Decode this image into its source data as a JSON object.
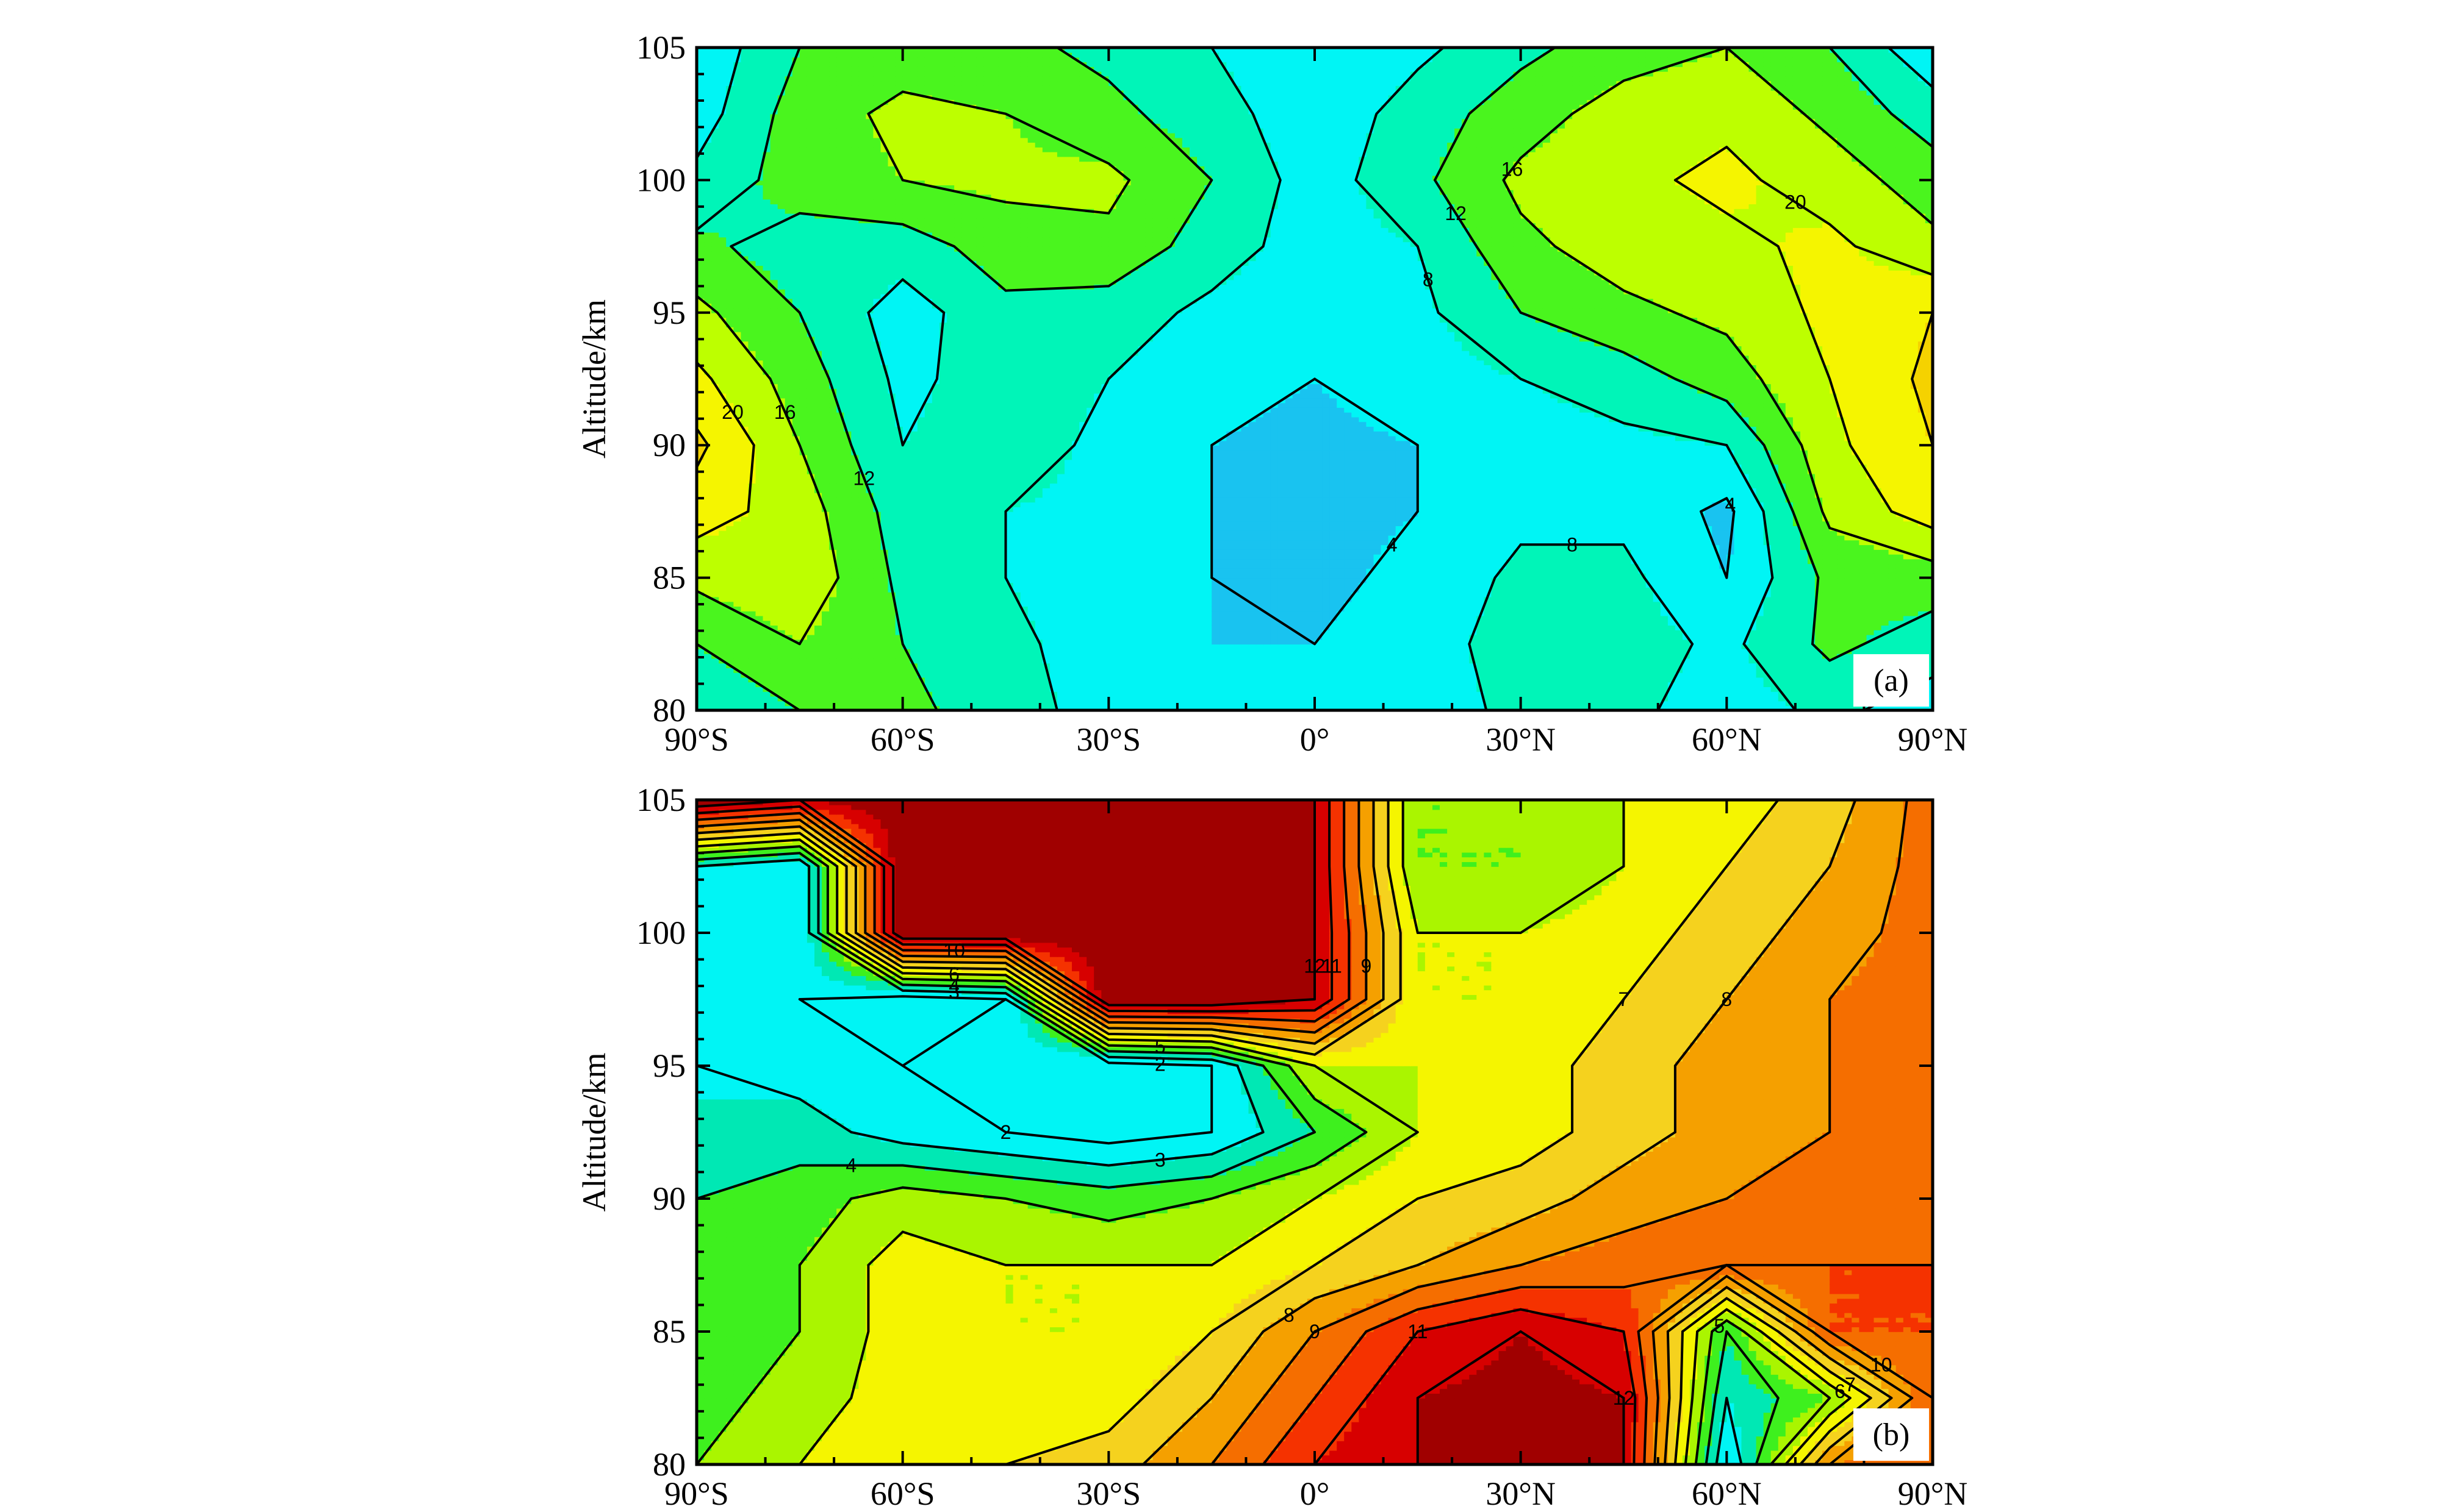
{
  "chart_data": [
    {
      "type": "heatmap",
      "panel_label": "(a)",
      "ylabel": "Altitude/km",
      "x_ticks": [
        "90°S",
        "60°S",
        "30°S",
        "0°",
        "30°N",
        "60°N",
        "90°N"
      ],
      "y_ticks": [
        "80",
        "85",
        "90",
        "95",
        "100",
        "105"
      ],
      "xlim": [
        -90,
        90
      ],
      "ylim": [
        80,
        105
      ],
      "x_unit": "degrees latitude",
      "y_unit": "km",
      "contour_levels": [
        4,
        8,
        12,
        16,
        20,
        24
      ],
      "colormap": [
        "#19c3f0",
        "#00f5f5",
        "#00f5b8",
        "#4af51e",
        "#bdff00",
        "#f5f500",
        "#f5d200"
      ],
      "x": [
        -90,
        -75,
        -60,
        -45,
        -30,
        -15,
        0,
        15,
        30,
        45,
        60,
        75,
        90
      ],
      "y": [
        80,
        82.5,
        85,
        87.5,
        90,
        92.5,
        95,
        97.5,
        100,
        102.5,
        105
      ],
      "z": [
        [
          8,
          12,
          13,
          10,
          6,
          4,
          5,
          6,
          9,
          9,
          6,
          9,
          6
        ],
        [
          12,
          16,
          12,
          9,
          6,
          4,
          4,
          6,
          10,
          10,
          7,
          13,
          10
        ],
        [
          17,
          19,
          11,
          8,
          6,
          4,
          3,
          5,
          9,
          9,
          4,
          13,
          14
        ],
        [
          22,
          18,
          10,
          8,
          7,
          4,
          3,
          4,
          7,
          7,
          3,
          17,
          22
        ],
        [
          25,
          16,
          8,
          10,
          7,
          4,
          3,
          4,
          6,
          7,
          8,
          19,
          24
        ],
        [
          21,
          14,
          7,
          10,
          8,
          5,
          4,
          6,
          8,
          10,
          14,
          20,
          25
        ],
        [
          17,
          12,
          6,
          11,
          10,
          7,
          5,
          7,
          12,
          15,
          17,
          21,
          24
        ],
        [
          13,
          10,
          10,
          14,
          15,
          10,
          6,
          8,
          15,
          18,
          19,
          21,
          17
        ],
        [
          9,
          14,
          16,
          17,
          17,
          12,
          6,
          11,
          17,
          19,
          21,
          18,
          14
        ],
        [
          6,
          14,
          17,
          16,
          13,
          10,
          5,
          10,
          14,
          18,
          19,
          15,
          10
        ],
        [
          5,
          12,
          14,
          13,
          11,
          8,
          4,
          7,
          11,
          14,
          16,
          12,
          5
        ]
      ]
    },
    {
      "type": "heatmap",
      "panel_label": "(b)",
      "ylabel": "Altitude/km",
      "x_ticks": [
        "90°S",
        "60°S",
        "30°S",
        "0°",
        "30°N",
        "60°N",
        "90°N"
      ],
      "y_ticks": [
        "80",
        "85",
        "90",
        "95",
        "100",
        "105"
      ],
      "xlim": [
        -90,
        90
      ],
      "ylim": [
        80,
        105
      ],
      "x_unit": "degrees latitude",
      "y_unit": "km",
      "contour_levels": [
        2,
        3,
        4,
        5,
        6,
        7,
        8,
        9,
        10,
        11,
        12
      ],
      "colormap": [
        "#00f5f5",
        "#00f5f5",
        "#00e8b4",
        "#3ef01e",
        "#aaf500",
        "#f5f500",
        "#f5d21e",
        "#f5a000",
        "#f56e00",
        "#f53200",
        "#d70000",
        "#a00000",
        "#78001e"
      ],
      "x": [
        -90,
        -75,
        -60,
        -45,
        -30,
        -15,
        0,
        15,
        30,
        45,
        60,
        75,
        90
      ],
      "y": [
        80,
        82.5,
        85,
        87.5,
        90,
        92.5,
        95,
        97.5,
        100,
        102.5,
        105
      ],
      "z": [
        [
          5,
          6,
          7,
          7,
          7.5,
          9,
          11,
          12,
          12.5,
          12,
          2,
          9,
          10
        ],
        [
          4.5,
          5.5,
          6.5,
          6,
          6.5,
          8,
          10,
          12,
          12.5,
          12,
          3,
          5,
          10
        ],
        [
          4,
          5,
          6.5,
          6,
          6,
          7,
          9,
          11,
          12,
          11,
          4,
          10,
          10
        ],
        [
          4,
          5,
          6.5,
          6,
          6,
          6,
          7,
          8,
          9,
          9.5,
          10,
          10,
          10
        ],
        [
          4,
          4.5,
          5.5,
          5,
          4.5,
          5,
          6,
          7,
          7.5,
          8.5,
          9,
          9.5,
          9.5
        ],
        [
          3,
          3.5,
          2.5,
          2,
          1.5,
          2,
          4,
          6,
          6.5,
          7.5,
          8.5,
          9,
          9.5
        ],
        [
          3,
          2.5,
          2,
          1.5,
          1.5,
          2,
          6,
          6,
          6.5,
          7.5,
          8.5,
          9,
          9.5
        ],
        [
          3,
          2,
          1.5,
          2,
          13,
          13,
          12,
          6,
          6,
          7,
          8,
          9,
          9.5
        ],
        [
          3,
          2,
          13,
          13,
          13,
          13,
          12,
          6,
          6,
          6.5,
          7.5,
          8.5,
          9.5
        ],
        [
          3,
          2,
          13,
          13,
          13,
          13,
          12,
          5,
          5,
          6,
          7,
          8,
          9.5
        ],
        [
          13,
          12,
          13,
          13,
          13,
          13,
          12,
          5,
          5,
          6,
          6.5,
          7.5,
          9.5
        ]
      ]
    }
  ]
}
